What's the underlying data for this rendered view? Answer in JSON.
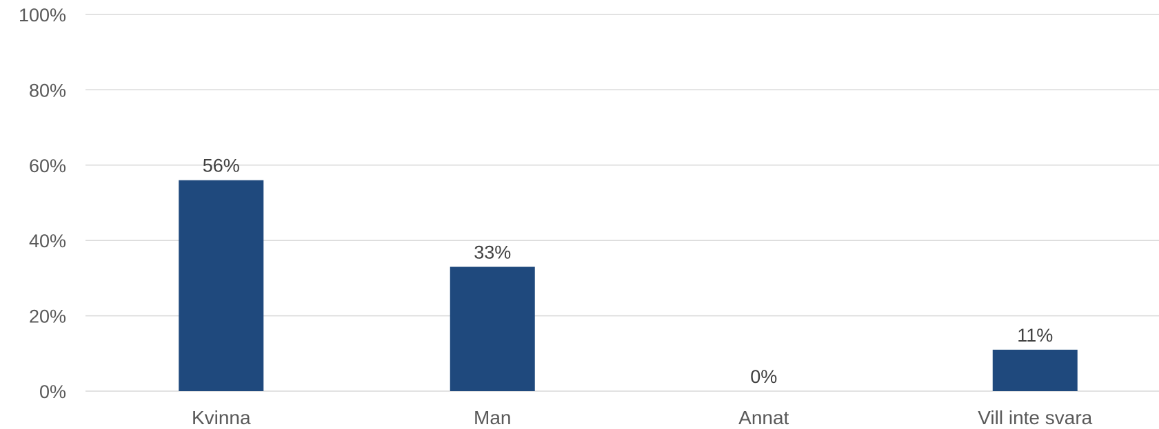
{
  "chart_data": {
    "type": "bar",
    "categories": [
      "Kvinna",
      "Man",
      "Annat",
      "Vill inte svara"
    ],
    "values": [
      56,
      33,
      0,
      11
    ],
    "data_labels": [
      "56%",
      "33%",
      "0%",
      "11%"
    ],
    "y_ticks": [
      "0%",
      "20%",
      "40%",
      "60%",
      "80%",
      "100%"
    ],
    "ylim": [
      0,
      100
    ],
    "grid": true,
    "colors": {
      "bar": "#1f497d",
      "grid": "#d9d9d9",
      "axis_text": "#595959",
      "data_label": "#404040"
    }
  }
}
